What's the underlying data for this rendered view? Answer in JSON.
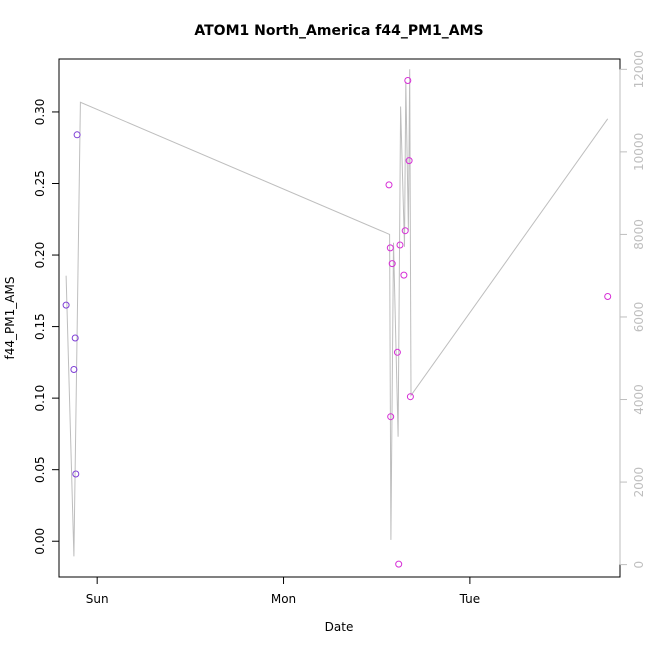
{
  "chart_data": {
    "type": "scatter",
    "title": "ATOM1 North_America f44_PM1_AMS",
    "xlabel": "Date",
    "ylabel": "f44_PM1_AMS",
    "x_axis": {
      "type": "date",
      "range": [
        "2016-08-13T19:05",
        "2016-08-16T19:20"
      ],
      "ticks": [
        {
          "value": "2016-08-14T00:00",
          "label": "Sun"
        },
        {
          "value": "2016-08-15T00:00",
          "label": "Mon"
        },
        {
          "value": "2016-08-16T00:00",
          "label": "Tue"
        }
      ]
    },
    "y_axis": {
      "range": [
        -0.025,
        0.337
      ],
      "ticks": [
        {
          "value": 0.0,
          "label": "0.00"
        },
        {
          "value": 0.05,
          "label": "0.05"
        },
        {
          "value": 0.1,
          "label": "0.10"
        },
        {
          "value": 0.15,
          "label": "0.15"
        },
        {
          "value": 0.2,
          "label": "0.20"
        },
        {
          "value": 0.25,
          "label": "0.25"
        },
        {
          "value": 0.3,
          "label": "0.30"
        }
      ]
    },
    "y2_axis": {
      "range": [
        -300,
        12250
      ],
      "color": "#bebebe",
      "ticks": [
        {
          "value": 0,
          "label": "0"
        },
        {
          "value": 2000,
          "label": "2000"
        },
        {
          "value": 4000,
          "label": "4000"
        },
        {
          "value": 6000,
          "label": "6000"
        },
        {
          "value": 8000,
          "label": "8000"
        },
        {
          "value": 10000,
          "label": "10000"
        },
        {
          "value": 12000,
          "label": "12000"
        }
      ]
    },
    "grid": false,
    "series": [
      {
        "kind": "points",
        "axis": "left",
        "values": [
          {
            "x": "2016-08-13T20:00",
            "y": 0.165,
            "color": "#7f3fd6"
          },
          {
            "x": "2016-08-13T21:00",
            "y": 0.12,
            "color": "#7f3fd6"
          },
          {
            "x": "2016-08-13T21:10",
            "y": 0.142,
            "color": "#7f3fd6"
          },
          {
            "x": "2016-08-13T21:15",
            "y": 0.047,
            "color": "#7f3fd6"
          },
          {
            "x": "2016-08-13T21:25",
            "y": 0.284,
            "color": "#7f3fd6"
          },
          {
            "x": "2016-08-15T13:35",
            "y": 0.249,
            "color": "#d62ed6"
          },
          {
            "x": "2016-08-15T13:45",
            "y": 0.205,
            "color": "#d62ed6"
          },
          {
            "x": "2016-08-15T13:48",
            "y": 0.087,
            "color": "#d62ed6"
          },
          {
            "x": "2016-08-15T14:00",
            "y": 0.194,
            "color": "#d62ed6"
          },
          {
            "x": "2016-08-15T14:40",
            "y": 0.132,
            "color": "#d62ed6"
          },
          {
            "x": "2016-08-15T14:50",
            "y": -0.016,
            "color": "#d62ed6"
          },
          {
            "x": "2016-08-15T15:00",
            "y": 0.207,
            "color": "#d62ed6"
          },
          {
            "x": "2016-08-15T15:30",
            "y": 0.186,
            "color": "#d62ed6"
          },
          {
            "x": "2016-08-15T15:40",
            "y": 0.217,
            "color": "#d62ed6"
          },
          {
            "x": "2016-08-15T16:00",
            "y": 0.322,
            "color": "#d62ed6"
          },
          {
            "x": "2016-08-15T16:10",
            "y": 0.266,
            "color": "#d62ed6"
          },
          {
            "x": "2016-08-15T16:20",
            "y": 0.101,
            "color": "#d62ed6"
          },
          {
            "x": "2016-08-16T17:45",
            "y": 0.171,
            "color": "#d62ed6"
          }
        ]
      },
      {
        "kind": "line",
        "axis": "right",
        "color": "#bebebe",
        "values": [
          {
            "x": "2016-08-13T20:00",
            "y": 7000
          },
          {
            "x": "2016-08-13T21:00",
            "y": 200
          },
          {
            "x": "2016-08-13T21:50",
            "y": 11200
          },
          {
            "x": "2016-08-15T13:40",
            "y": 8000
          },
          {
            "x": "2016-08-15T13:50",
            "y": 600
          },
          {
            "x": "2016-08-15T14:10",
            "y": 7800
          },
          {
            "x": "2016-08-15T14:45",
            "y": 3100
          },
          {
            "x": "2016-08-15T15:05",
            "y": 11100
          },
          {
            "x": "2016-08-15T15:35",
            "y": 7700
          },
          {
            "x": "2016-08-15T15:45",
            "y": 11700
          },
          {
            "x": "2016-08-15T16:05",
            "y": 8100
          },
          {
            "x": "2016-08-15T16:15",
            "y": 12000
          },
          {
            "x": "2016-08-15T16:25",
            "y": 4100
          },
          {
            "x": "2016-08-16T17:45",
            "y": 10800
          }
        ]
      }
    ]
  }
}
